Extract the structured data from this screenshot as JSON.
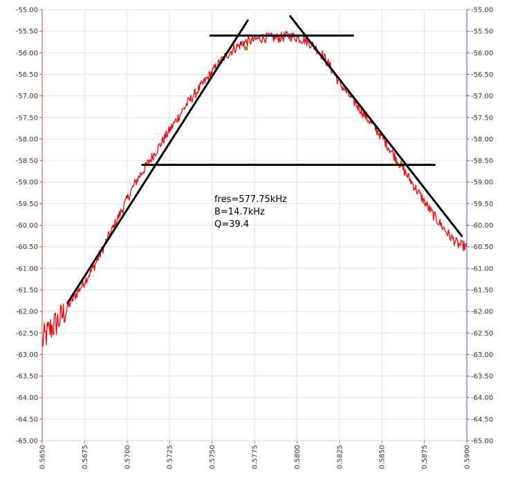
{
  "chart_data": {
    "type": "line",
    "title": "",
    "xlabel": "",
    "ylabel": "",
    "xlim": [
      0.565,
      0.59
    ],
    "ylim": [
      -65,
      -55
    ],
    "y2lim": [
      -65,
      -55
    ],
    "grid": true,
    "x_ticks": [
      "0.5650",
      "0.5675",
      "0.5700",
      "0.5725",
      "0.5750",
      "0.5775",
      "0.5800",
      "0.5825",
      "0.5850",
      "0.5875",
      "0.5900"
    ],
    "y_ticks": [
      "-55.00",
      "-55.50",
      "-56.00",
      "-56.50",
      "-57.00",
      "-57.50",
      "-58.00",
      "-58.50",
      "-59.00",
      "-59.50",
      "-60.00",
      "-60.50",
      "-61.00",
      "-61.50",
      "-62.00",
      "-62.50",
      "-63.00",
      "-63.50",
      "-64.00",
      "-64.50",
      "-65.00"
    ],
    "series": [
      {
        "color": "#ff0000",
        "x": [
          0.565,
          0.5655,
          0.566,
          0.5665,
          0.567,
          0.5675,
          0.568,
          0.5685,
          0.569,
          0.5695,
          0.57,
          0.5705,
          0.571,
          0.5715,
          0.572,
          0.5725,
          0.573,
          0.5735,
          0.574,
          0.5745,
          0.575,
          0.5755,
          0.576,
          0.5765,
          0.577,
          0.5775,
          0.578,
          0.5785,
          0.579,
          0.5795,
          0.58,
          0.5805,
          0.581,
          0.5815,
          0.582,
          0.5825,
          0.583,
          0.5835,
          0.584,
          0.5845,
          0.585,
          0.5855,
          0.586,
          0.5865,
          0.587,
          0.5875,
          0.588,
          0.5885,
          0.589,
          0.5895,
          0.59
        ],
        "values": [
          -62.7,
          -62.4,
          -62.2,
          -61.9,
          -61.6,
          -61.3,
          -61.0,
          -60.6,
          -60.2,
          -59.8,
          -59.4,
          -59.0,
          -58.7,
          -58.4,
          -58.1,
          -57.8,
          -57.5,
          -57.2,
          -56.95,
          -56.7,
          -56.45,
          -56.2,
          -56.0,
          -55.85,
          -55.75,
          -55.7,
          -55.65,
          -55.65,
          -55.65,
          -55.6,
          -55.65,
          -55.7,
          -55.85,
          -56.05,
          -56.35,
          -56.7,
          -56.95,
          -57.2,
          -57.45,
          -57.7,
          -57.95,
          -58.25,
          -58.55,
          -58.85,
          -59.15,
          -59.45,
          -59.75,
          -60.0,
          -60.25,
          -60.45,
          -60.5
        ]
      }
    ],
    "fit_lines": [
      {
        "color": "#000000",
        "x": [
          0.5665,
          0.5771
        ],
        "y": [
          -61.8,
          -55.25
        ]
      },
      {
        "color": "#000000",
        "x": [
          0.5796,
          0.5897
        ],
        "y": [
          -55.15,
          -60.25
        ]
      },
      {
        "color": "#000000",
        "x": [
          0.5749,
          0.5833
        ],
        "y": [
          -55.6,
          -55.6
        ]
      },
      {
        "color": "#000000",
        "x": [
          0.5709,
          0.5881
        ],
        "y": [
          -58.6,
          -58.6
        ]
      }
    ],
    "annotations": [
      "fres=577.75kHz",
      "B=14.7kHz",
      "Q=39.4"
    ],
    "marker": {
      "label": "0",
      "x": 0.577,
      "y": -55.9
    }
  },
  "colors": {
    "left_axis": "#e04040",
    "right_axis": "#5050d0",
    "grid": "#e0e0e0",
    "tick_text": "#333333"
  }
}
